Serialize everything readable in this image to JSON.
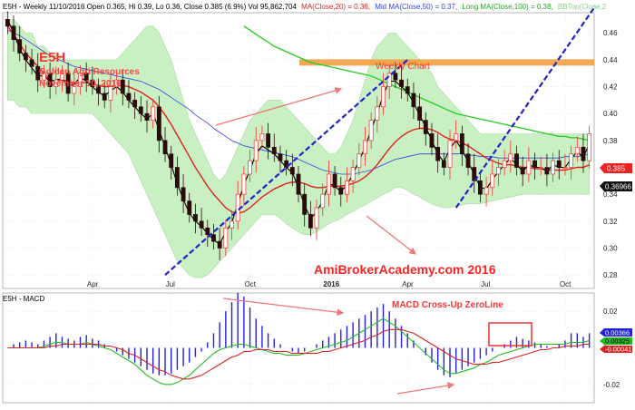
{
  "header": {
    "symbol_line": "E5H - Weekly 11/10/2016 Open 0.365, Hi 0.39, Lo 0.36, Close 0.385 (6.9%) Vol 95,862,704",
    "ma20_label": "MA(Close,20) = 0.36,",
    "ma50_label": "Mid MA(Close,50) = 0.37,",
    "ma100_label": "Long MA(Close,100) = 0.38,",
    "bb_label": "BBTop(Close,2"
  },
  "annotations": {
    "ticker": "E5H",
    "company": "Golden Agri Resources",
    "date": "November 10, 2016",
    "chart_title": "Weekly Chart",
    "watermark": "AmiBrokerAcademy.com  2016",
    "macd_title": "E5H - MACD",
    "macd_note": "MACD Cross-Up ZeroLine"
  },
  "colors": {
    "bull": "#ee3333",
    "bear": "#2a0a0a",
    "ma20": "#e02020",
    "ma50": "#3344dd",
    "ma100": "#22cc22",
    "short_ma": "#000000",
    "band_fill": "#c9f0c3",
    "band_edge": "#a8dca0",
    "resistance": "#f0a040",
    "trendline": "#2222cc",
    "arrow": "#ee7777",
    "macd_hist": "#2222dd",
    "macd_line": "#22bb22",
    "signal_line": "#dd2222"
  },
  "chart_data": [
    {
      "type": "candlestick",
      "title": "Weekly Chart",
      "ylim": [
        0.27,
        0.475
      ],
      "y_ticks": [
        "0.28",
        "0.30",
        "0.32",
        "0.34",
        "0.36",
        "0.38",
        "0.40",
        "0.42",
        "0.44",
        "0.46"
      ],
      "x_ticks": [
        "Apr",
        "Jul",
        "Oct",
        "2016",
        "Apr",
        "Jul",
        "Oct"
      ],
      "x_tick_index": [
        14,
        27,
        40,
        53,
        66,
        79,
        92
      ],
      "n_bars": 97,
      "close_label": "0.385",
      "ma_label": "0.36966",
      "resistance_level": 0.438,
      "closes": [
        0.465,
        0.455,
        0.445,
        0.44,
        0.435,
        0.425,
        0.43,
        0.42,
        0.425,
        0.43,
        0.415,
        0.42,
        0.43,
        0.425,
        0.42,
        0.415,
        0.41,
        0.42,
        0.425,
        0.415,
        0.41,
        0.405,
        0.4,
        0.395,
        0.405,
        0.38,
        0.37,
        0.36,
        0.345,
        0.335,
        0.325,
        0.32,
        0.315,
        0.31,
        0.305,
        0.3,
        0.315,
        0.32,
        0.34,
        0.355,
        0.365,
        0.38,
        0.385,
        0.375,
        0.37,
        0.365,
        0.36,
        0.355,
        0.34,
        0.325,
        0.315,
        0.33,
        0.34,
        0.355,
        0.345,
        0.34,
        0.35,
        0.36,
        0.37,
        0.38,
        0.395,
        0.405,
        0.42,
        0.43,
        0.425,
        0.42,
        0.415,
        0.405,
        0.395,
        0.385,
        0.375,
        0.365,
        0.36,
        0.38,
        0.385,
        0.37,
        0.36,
        0.35,
        0.34,
        0.345,
        0.355,
        0.36,
        0.365,
        0.37,
        0.36,
        0.355,
        0.365,
        0.36,
        0.36,
        0.355,
        0.365,
        0.36,
        0.36,
        0.37,
        0.375,
        0.365,
        0.385
      ],
      "bands": {
        "upper": [
          0.47,
          0.47,
          0.465,
          0.46,
          0.46,
          0.45,
          0.45,
          0.445,
          0.445,
          0.44,
          0.44,
          0.44,
          0.44,
          0.44,
          0.44,
          0.44,
          0.44,
          0.44,
          0.44,
          0.445,
          0.45,
          0.455,
          0.46,
          0.465,
          0.465,
          0.46,
          0.45,
          0.44,
          0.425,
          0.41,
          0.395,
          0.385,
          0.375,
          0.365,
          0.355,
          0.35,
          0.355,
          0.365,
          0.375,
          0.385,
          0.395,
          0.4,
          0.405,
          0.41,
          0.41,
          0.41,
          0.405,
          0.4,
          0.395,
          0.39,
          0.385,
          0.38,
          0.375,
          0.37,
          0.37,
          0.375,
          0.385,
          0.395,
          0.41,
          0.425,
          0.44,
          0.45,
          0.455,
          0.46,
          0.46,
          0.455,
          0.45,
          0.445,
          0.44,
          0.435,
          0.43,
          0.42,
          0.415,
          0.41,
          0.405,
          0.4,
          0.395,
          0.39,
          0.385,
          0.385,
          0.385,
          0.385,
          0.385,
          0.385,
          0.385,
          0.385,
          0.385,
          0.385,
          0.385,
          0.385,
          0.385,
          0.385,
          0.385,
          0.385,
          0.385,
          0.385,
          0.385
        ],
        "lower": [
          0.41,
          0.41,
          0.405,
          0.405,
          0.4,
          0.4,
          0.4,
          0.4,
          0.4,
          0.4,
          0.4,
          0.4,
          0.4,
          0.4,
          0.4,
          0.395,
          0.39,
          0.385,
          0.38,
          0.375,
          0.37,
          0.36,
          0.35,
          0.34,
          0.33,
          0.32,
          0.31,
          0.3,
          0.29,
          0.285,
          0.28,
          0.278,
          0.278,
          0.28,
          0.285,
          0.29,
          0.295,
          0.3,
          0.305,
          0.31,
          0.315,
          0.32,
          0.325,
          0.325,
          0.325,
          0.322,
          0.318,
          0.315,
          0.312,
          0.31,
          0.31,
          0.312,
          0.315,
          0.318,
          0.32,
          0.322,
          0.325,
          0.327,
          0.33,
          0.332,
          0.335,
          0.337,
          0.34,
          0.342,
          0.345,
          0.345,
          0.343,
          0.34,
          0.338,
          0.335,
          0.333,
          0.331,
          0.33,
          0.33,
          0.331,
          0.332,
          0.333,
          0.333,
          0.333,
          0.334,
          0.335,
          0.336,
          0.337,
          0.338,
          0.339,
          0.34,
          0.34,
          0.34,
          0.34,
          0.34,
          0.34,
          0.34,
          0.34,
          0.34,
          0.34,
          0.34,
          0.34
        ]
      },
      "ma20": [
        0.465,
        0.459,
        0.452,
        0.445,
        0.44,
        0.435,
        0.43,
        0.425,
        0.424,
        0.425,
        0.424,
        0.422,
        0.423,
        0.423,
        0.422,
        0.421,
        0.42,
        0.42,
        0.421,
        0.421,
        0.42,
        0.418,
        0.416,
        0.413,
        0.41,
        0.405,
        0.399,
        0.392,
        0.384,
        0.376,
        0.368,
        0.36,
        0.353,
        0.346,
        0.34,
        0.335,
        0.33,
        0.327,
        0.326,
        0.327,
        0.33,
        0.334,
        0.338,
        0.341,
        0.344,
        0.346,
        0.348,
        0.349,
        0.349,
        0.348,
        0.346,
        0.345,
        0.345,
        0.346,
        0.346,
        0.346,
        0.347,
        0.348,
        0.35,
        0.353,
        0.357,
        0.362,
        0.368,
        0.374,
        0.379,
        0.383,
        0.386,
        0.388,
        0.389,
        0.389,
        0.388,
        0.386,
        0.383,
        0.381,
        0.38,
        0.378,
        0.376,
        0.373,
        0.37,
        0.367,
        0.365,
        0.363,
        0.362,
        0.362,
        0.361,
        0.36,
        0.36,
        0.359,
        0.359,
        0.358,
        0.358,
        0.358,
        0.358,
        0.359,
        0.36,
        0.36,
        0.362
      ],
      "ma50": [
        0.462,
        0.46,
        0.458,
        0.455,
        0.452,
        0.449,
        0.446,
        0.443,
        0.441,
        0.439,
        0.437,
        0.435,
        0.434,
        0.433,
        0.432,
        0.431,
        0.43,
        0.429,
        0.428,
        0.427,
        0.426,
        0.425,
        0.424,
        0.422,
        0.42,
        0.418,
        0.415,
        0.412,
        0.409,
        0.406,
        0.403,
        0.399,
        0.396,
        0.393,
        0.389,
        0.386,
        0.383,
        0.38,
        0.378,
        0.376,
        0.375,
        0.374,
        0.373,
        0.372,
        0.371,
        0.37,
        0.369,
        0.368,
        0.366,
        0.364,
        0.362,
        0.36,
        0.358,
        0.357,
        0.356,
        0.355,
        0.355,
        0.355,
        0.356,
        0.357,
        0.358,
        0.36,
        0.362,
        0.364,
        0.366,
        0.367,
        0.368,
        0.369,
        0.37,
        0.37,
        0.37,
        0.37,
        0.37,
        0.37,
        0.37,
        0.37,
        0.369,
        0.369,
        0.368,
        0.368,
        0.368,
        0.367,
        0.367,
        0.367,
        0.367,
        0.367,
        0.367,
        0.367,
        0.367,
        0.367,
        0.367,
        0.367,
        0.368,
        0.368,
        0.368,
        0.369,
        0.37
      ],
      "ma100": [
        null,
        null,
        null,
        null,
        null,
        null,
        null,
        null,
        null,
        null,
        null,
        null,
        null,
        null,
        null,
        null,
        null,
        null,
        null,
        null,
        null,
        null,
        null,
        null,
        null,
        null,
        null,
        null,
        null,
        null,
        null,
        null,
        null,
        null,
        null,
        null,
        null,
        null,
        null,
        0.465,
        0.462,
        0.459,
        0.456,
        0.453,
        0.45,
        0.448,
        0.446,
        0.444,
        0.442,
        0.44,
        0.438,
        0.437,
        0.436,
        0.435,
        0.434,
        0.433,
        0.432,
        0.431,
        0.43,
        0.429,
        0.428,
        0.426,
        0.424,
        0.422,
        0.42,
        0.418,
        0.416,
        0.414,
        0.412,
        0.41,
        0.408,
        0.406,
        0.404,
        0.402,
        0.4,
        0.399,
        0.398,
        0.397,
        0.396,
        0.395,
        0.394,
        0.393,
        0.392,
        0.391,
        0.39,
        0.389,
        0.388,
        0.387,
        0.386,
        0.385,
        0.384,
        0.383,
        0.383,
        0.382,
        0.382,
        0.381,
        0.38
      ],
      "short_ma": [
        0.47,
        0.46,
        0.448,
        0.44,
        0.434,
        0.428,
        0.428,
        0.424,
        0.425,
        0.426,
        0.42,
        0.422,
        0.427,
        0.424,
        0.42,
        0.416,
        0.413,
        0.417,
        0.42,
        0.416,
        0.41,
        0.405,
        0.4,
        0.396,
        0.4,
        0.388,
        0.375,
        0.362,
        0.348,
        0.336,
        0.326,
        0.32,
        0.316,
        0.311,
        0.306,
        0.303,
        0.312,
        0.319,
        0.333,
        0.347,
        0.358,
        0.37,
        0.376,
        0.373,
        0.37,
        0.365,
        0.36,
        0.356,
        0.345,
        0.332,
        0.322,
        0.327,
        0.335,
        0.348,
        0.346,
        0.342,
        0.347,
        0.355,
        0.365,
        0.375,
        0.388,
        0.4,
        0.414,
        0.424,
        0.424,
        0.42,
        0.416,
        0.408,
        0.399,
        0.39,
        0.38,
        0.37,
        0.364,
        0.374,
        0.38,
        0.373,
        0.364,
        0.355,
        0.345,
        0.344,
        0.351,
        0.357,
        0.362,
        0.367,
        0.362,
        0.357,
        0.362,
        0.36,
        0.36,
        0.357,
        0.362,
        0.36,
        0.36,
        0.366,
        0.372,
        0.367,
        0.378
      ],
      "trendlines": [
        {
          "from": [
            26,
            0.28
          ],
          "to": [
            66,
            0.44
          ]
        },
        {
          "from": [
            74,
            0.33
          ],
          "to": [
            97,
            0.48
          ]
        }
      ]
    },
    {
      "type": "macd",
      "title": "E5H - MACD",
      "ylim": [
        -0.03,
        0.03
      ],
      "y_ticks": [
        "0.02",
        "0",
        "-0.02"
      ],
      "last_labels": [
        "0.00366",
        "0.00325",
        "-0.00041"
      ],
      "histogram": [
        0.0,
        0.002,
        0.003,
        0.004,
        0.003,
        0.002,
        0.004,
        0.006,
        0.008,
        0.006,
        0.005,
        0.004,
        0.006,
        0.007,
        0.005,
        0.004,
        0.002,
        0.0,
        -0.002,
        -0.004,
        -0.006,
        -0.008,
        -0.01,
        -0.012,
        -0.014,
        -0.015,
        -0.015,
        -0.014,
        -0.012,
        -0.01,
        -0.008,
        -0.005,
        -0.002,
        0.003,
        0.008,
        0.014,
        0.02,
        0.025,
        0.03,
        0.028,
        0.022,
        0.016,
        0.012,
        0.008,
        0.005,
        0.002,
        0.0,
        -0.002,
        -0.003,
        -0.002,
        0.0,
        0.002,
        0.004,
        0.006,
        0.008,
        0.01,
        0.012,
        0.014,
        0.016,
        0.018,
        0.02,
        0.022,
        0.024,
        0.02,
        0.016,
        0.012,
        0.008,
        0.004,
        0.0,
        -0.004,
        -0.008,
        -0.012,
        -0.015,
        -0.016,
        -0.014,
        -0.012,
        -0.01,
        -0.008,
        -0.006,
        -0.004,
        -0.002,
        0.0,
        0.002,
        0.004,
        0.006,
        0.005,
        0.004,
        0.003,
        0.002,
        0.001,
        0.0,
        0.002,
        0.004,
        0.008,
        0.008,
        0.006,
        0.008
      ],
      "macd": [
        0.0,
        0.0,
        0.0,
        0.0,
        0.0,
        0.0,
        0.001,
        0.002,
        0.003,
        0.003,
        0.002,
        0.002,
        0.002,
        0.003,
        0.002,
        0.001,
        0.0,
        -0.001,
        -0.003,
        -0.005,
        -0.007,
        -0.009,
        -0.012,
        -0.015,
        -0.017,
        -0.019,
        -0.02,
        -0.02,
        -0.019,
        -0.017,
        -0.015,
        -0.012,
        -0.009,
        -0.006,
        -0.003,
        -0.001,
        0.0,
        0.001,
        0.002,
        0.002,
        0.001,
        0.0,
        -0.001,
        -0.002,
        -0.003,
        -0.003,
        -0.004,
        -0.004,
        -0.004,
        -0.003,
        -0.002,
        -0.001,
        0.0,
        0.001,
        0.002,
        0.003,
        0.004,
        0.006,
        0.008,
        0.01,
        0.012,
        0.014,
        0.016,
        0.014,
        0.012,
        0.009,
        0.006,
        0.003,
        0.0,
        -0.003,
        -0.006,
        -0.009,
        -0.012,
        -0.014,
        -0.014,
        -0.013,
        -0.012,
        -0.011,
        -0.009,
        -0.008,
        -0.006,
        -0.004,
        -0.003,
        -0.002,
        -0.001,
        0.0,
        0.001,
        0.002,
        0.002,
        0.002,
        0.002,
        0.002,
        0.002,
        0.003,
        0.003,
        0.003,
        0.004
      ],
      "signal": [
        0.0,
        0.0,
        0.0,
        0.0,
        0.0,
        0.0,
        0.0,
        0.001,
        0.001,
        0.002,
        0.002,
        0.002,
        0.002,
        0.002,
        0.002,
        0.002,
        0.001,
        0.001,
        0.0,
        -0.001,
        -0.003,
        -0.004,
        -0.006,
        -0.008,
        -0.01,
        -0.012,
        -0.013,
        -0.015,
        -0.016,
        -0.017,
        -0.017,
        -0.016,
        -0.015,
        -0.013,
        -0.011,
        -0.009,
        -0.007,
        -0.005,
        -0.004,
        -0.002,
        -0.002,
        -0.001,
        -0.001,
        -0.001,
        -0.002,
        -0.002,
        -0.002,
        -0.003,
        -0.003,
        -0.003,
        -0.003,
        -0.003,
        -0.002,
        -0.002,
        -0.001,
        0.0,
        0.001,
        0.002,
        0.003,
        0.004,
        0.006,
        0.007,
        0.009,
        0.01,
        0.01,
        0.01,
        0.009,
        0.008,
        0.006,
        0.004,
        0.002,
        0.0,
        -0.002,
        -0.004,
        -0.006,
        -0.007,
        -0.008,
        -0.009,
        -0.009,
        -0.009,
        -0.008,
        -0.008,
        -0.007,
        -0.006,
        -0.005,
        -0.004,
        -0.003,
        -0.002,
        -0.001,
        -0.001,
        0.0,
        0.0,
        0.001,
        0.001,
        0.001,
        0.002,
        0.002
      ]
    }
  ]
}
